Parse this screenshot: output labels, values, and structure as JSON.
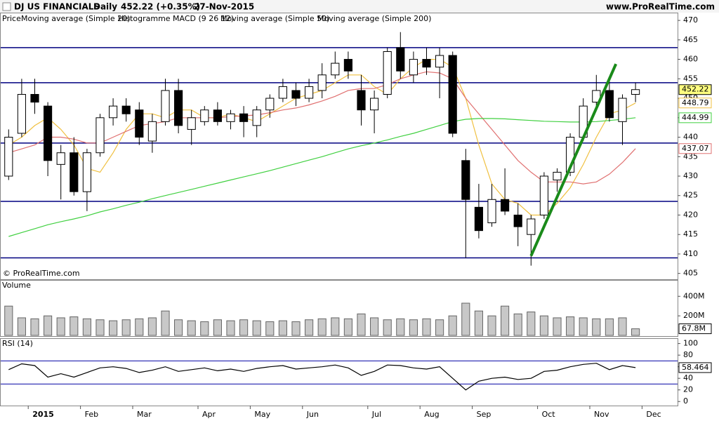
{
  "header": {
    "title": "DJ US FINANCIALS",
    "period": "Daily",
    "quote": "452.22 (+0.35%)",
    "date": "27-Nov-2015",
    "site": "www.ProRealTime.com"
  },
  "chart_data": [
    {
      "type": "candlestick",
      "legend_name": "Price",
      "indicator_label": "Histogramme MACD (9 26 12)",
      "watermark": "© ProRealTime.com",
      "categories": [
        null,
        null,
        "2015",
        null,
        null,
        null,
        "Feb",
        null,
        null,
        null,
        "Mar",
        null,
        null,
        null,
        null,
        "Apr",
        null,
        null,
        null,
        "May",
        null,
        null,
        null,
        "Jun",
        null,
        null,
        null,
        null,
        "Jul",
        null,
        null,
        null,
        "Aug",
        null,
        null,
        null,
        "Sep",
        null,
        null,
        null,
        null,
        "Oct",
        null,
        null,
        null,
        "Nov",
        null,
        null,
        null,
        "Dec"
      ],
      "open": [
        430,
        441,
        451,
        448,
        433,
        436,
        426,
        436,
        445,
        448,
        447,
        439,
        444,
        452,
        442,
        444,
        447,
        444,
        446,
        443,
        447,
        450,
        452,
        450,
        452,
        456,
        460,
        452,
        447,
        451,
        463,
        456,
        460,
        458,
        461,
        434,
        422,
        418,
        424,
        420,
        415,
        420,
        429,
        431,
        440,
        449,
        452,
        444,
        451,
        null
      ],
      "high": [
        442,
        455,
        455,
        449,
        438,
        440,
        437,
        446,
        450,
        450,
        449,
        446,
        455,
        455,
        447,
        448,
        449,
        447,
        448,
        448,
        451,
        455,
        454,
        455,
        459,
        462,
        462,
        456,
        452,
        463,
        467,
        462,
        463,
        463,
        462,
        437,
        428,
        428,
        432,
        423,
        420,
        431,
        432,
        441,
        450,
        456,
        455,
        451,
        454,
        null
      ],
      "low": [
        429,
        440,
        446,
        430,
        424,
        425,
        421,
        435,
        443,
        444,
        438,
        436,
        443,
        441,
        438,
        443,
        443,
        442,
        440,
        440,
        445,
        449,
        448,
        449,
        450,
        455,
        455,
        443,
        441,
        450,
        455,
        454,
        456,
        450,
        440,
        409,
        414,
        417,
        420,
        412,
        407,
        419,
        426,
        430,
        439,
        447,
        444,
        438,
        449,
        null
      ],
      "close": [
        440,
        451,
        449,
        434,
        436,
        426,
        436,
        445,
        448,
        446,
        440,
        444,
        452,
        443,
        445,
        447,
        444,
        446,
        444,
        447,
        450,
        453,
        450,
        453,
        456,
        459,
        457,
        447,
        450,
        462,
        457,
        460,
        458,
        461,
        441,
        424,
        416,
        424,
        421,
        417,
        419,
        430,
        431,
        440,
        448,
        452,
        445,
        450,
        452.22,
        null
      ],
      "series": [
        {
          "name": "Moving average (Simple 20)",
          "color": "#f0c040",
          "values": [
            438,
            440,
            443,
            445,
            442,
            438,
            432,
            431,
            436,
            442,
            446,
            446,
            445,
            447,
            447,
            445,
            445,
            446,
            445,
            444,
            446,
            448,
            450,
            451,
            452,
            454,
            456,
            456,
            453,
            451,
            455,
            458,
            460,
            460,
            458,
            450,
            438,
            428,
            424,
            423,
            420,
            420,
            423,
            427,
            433,
            440,
            446,
            447,
            448.79,
            null
          ]
        },
        {
          "name": "Moving average (Simple 50)",
          "color": "#e07070",
          "values": [
            436,
            437,
            438,
            440,
            440,
            439.5,
            438.5,
            438.5,
            440,
            441.5,
            443,
            443.5,
            444,
            445,
            445,
            445,
            445,
            445.3,
            445.5,
            445.7,
            446.3,
            447,
            447.5,
            448.3,
            449.3,
            450.5,
            452,
            452.5,
            452.5,
            453.5,
            455,
            456,
            456.8,
            456.5,
            455,
            450,
            446,
            442,
            438,
            434,
            431,
            428.5,
            428.5,
            428.5,
            428,
            428.5,
            430.5,
            433.5,
            437.07,
            null
          ]
        },
        {
          "name": "Moving average (Simple 200)",
          "color": "#40d040",
          "values": [
            414.5,
            415.5,
            416.5,
            417.5,
            418.3,
            419,
            419.8,
            420.8,
            421.6,
            422.5,
            423.3,
            424.2,
            425,
            425.8,
            426.6,
            427.4,
            428.2,
            429,
            429.8,
            430.6,
            431.4,
            432.3,
            433.2,
            434.1,
            435,
            436,
            437,
            437.8,
            438.5,
            439.3,
            440.2,
            441,
            442,
            443,
            444,
            444.6,
            444.8,
            444.8,
            444.7,
            444.5,
            444.3,
            444.1,
            444,
            443.9,
            443.9,
            444,
            444.3,
            444.6,
            444.99,
            null
          ]
        }
      ],
      "markers": [
        {
          "value": 452.22,
          "color": "#ffff80"
        },
        {
          "value": 448.79,
          "color": "#f0c040"
        },
        {
          "value": 444.99,
          "color": "#40d040"
        },
        {
          "value": 437.07,
          "color": "#e07070"
        }
      ],
      "levels": [
        463,
        454,
        438.5,
        423.5,
        409
      ],
      "level_color": "#000080",
      "trendline": {
        "x": [
          40,
          46.5
        ],
        "y": [
          409.5,
          458.8
        ],
        "color": "#1a8a1a"
      },
      "ylim": [
        403.5,
        472
      ],
      "yticks": [
        405,
        410,
        415,
        420,
        425,
        430,
        435,
        440,
        445,
        450,
        455,
        460,
        465,
        470
      ]
    },
    {
      "type": "bar",
      "title": "Volume",
      "color": "#c8c8c8",
      "values": [
        300000000,
        180000000,
        170000000,
        200000000,
        180000000,
        190000000,
        170000000,
        160000000,
        150000000,
        160000000,
        170000000,
        180000000,
        250000000,
        160000000,
        150000000,
        140000000,
        160000000,
        150000000,
        160000000,
        150000000,
        140000000,
        150000000,
        140000000,
        160000000,
        170000000,
        180000000,
        170000000,
        220000000,
        180000000,
        160000000,
        170000000,
        160000000,
        170000000,
        160000000,
        200000000,
        330000000,
        250000000,
        200000000,
        300000000,
        220000000,
        240000000,
        200000000,
        180000000,
        190000000,
        180000000,
        170000000,
        170000000,
        180000000,
        67800000,
        null
      ],
      "last_label": {
        "value": 67800000,
        "label": "67.8M"
      },
      "ylim": [
        0,
        560000000
      ],
      "yticks": [
        {
          "value": 200000000,
          "label": "200M"
        },
        {
          "value": 400000000,
          "label": "400M"
        }
      ]
    },
    {
      "type": "line",
      "title": "RSI (14)",
      "color": "#000000",
      "values": [
        55,
        65,
        62,
        42,
        48,
        42,
        50,
        58,
        60,
        57,
        50,
        54,
        60,
        52,
        55,
        58,
        53,
        56,
        52,
        57,
        60,
        62,
        56,
        58,
        60,
        63,
        58,
        45,
        52,
        63,
        62,
        58,
        56,
        60,
        40,
        20,
        35,
        40,
        42,
        38,
        40,
        52,
        54,
        60,
        64,
        66,
        55,
        62,
        58.464,
        null
      ],
      "markers": [
        {
          "value": 58.464,
          "color": "#ffffff"
        }
      ],
      "levels": [
        70,
        30
      ],
      "level_color": "#5050c0",
      "ylim": [
        -7,
        108
      ],
      "yticks": [
        0,
        20,
        40,
        60,
        80,
        100
      ]
    }
  ]
}
